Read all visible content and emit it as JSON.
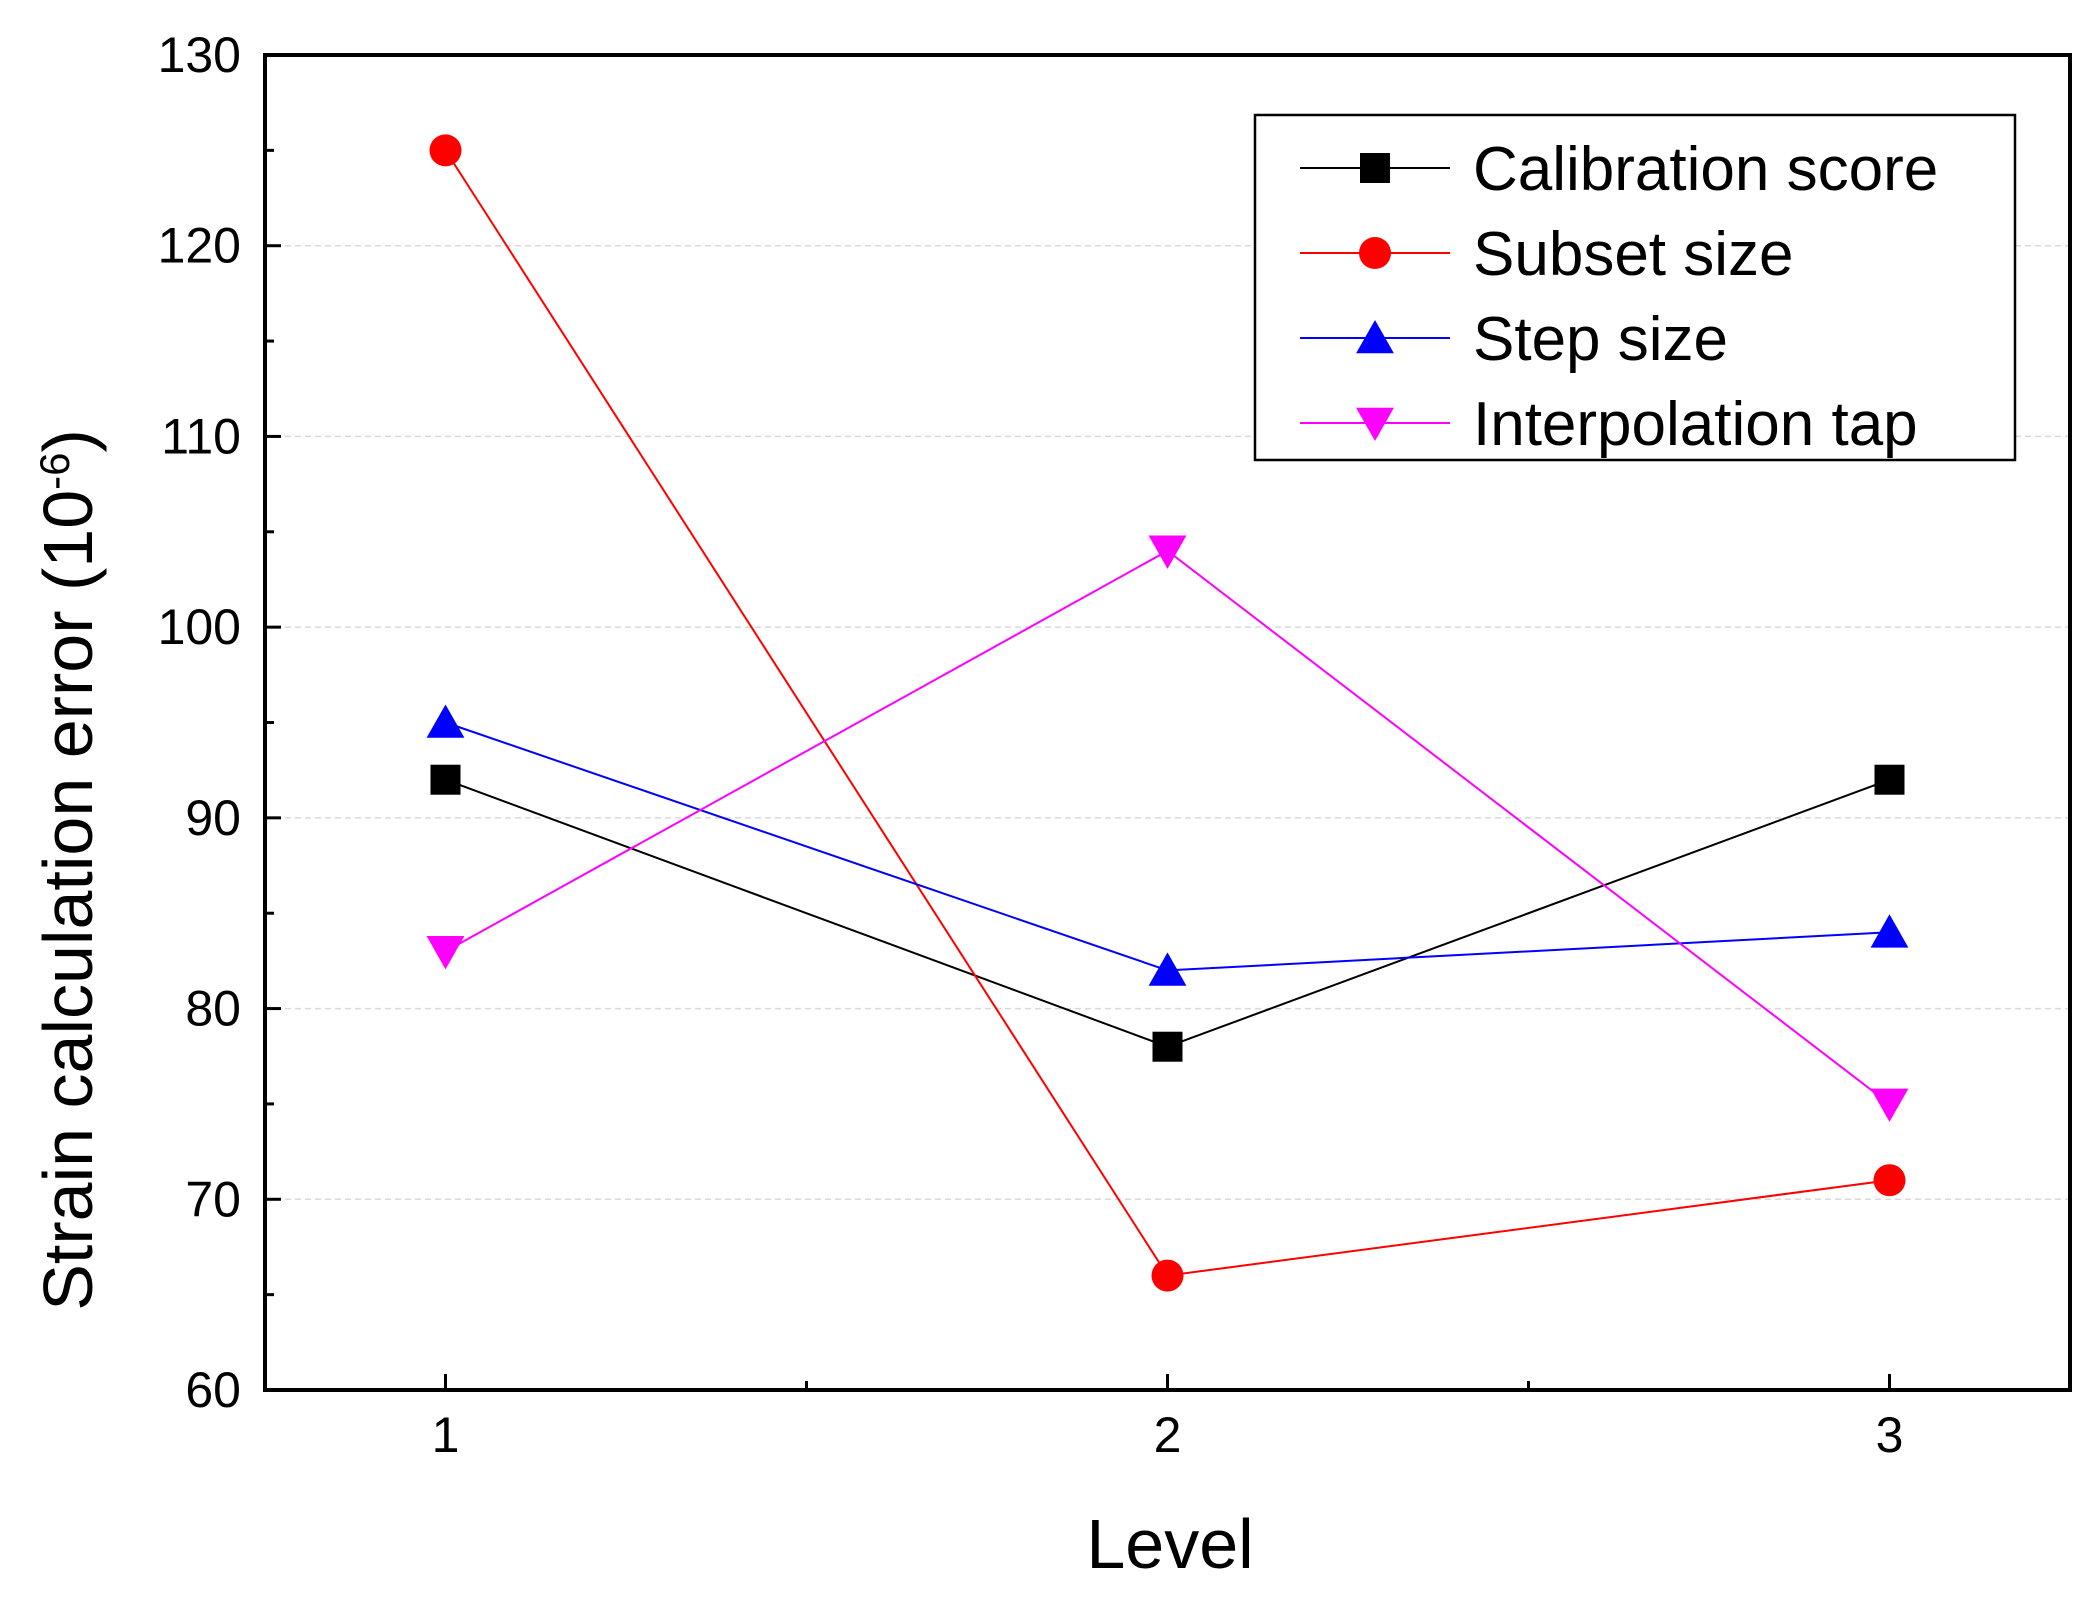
{
  "chart_data": {
    "type": "line",
    "title": "",
    "xlabel": "Level",
    "ylabel_main": "Strain calculation error (10",
    "ylabel_sup": "-6",
    "ylabel_close": ")",
    "categories": [
      "1",
      "2",
      "3"
    ],
    "x": [
      1,
      2,
      3
    ],
    "xlim": [
      0.75,
      3.25
    ],
    "ylim": [
      60,
      130
    ],
    "yticks": [
      60,
      70,
      80,
      90,
      100,
      110,
      120,
      130
    ],
    "y_minor_step": 5,
    "grid": true,
    "legend_position": "top-right",
    "series": [
      {
        "name": "Calibration score",
        "values": [
          92,
          78,
          92
        ],
        "color": "#000000",
        "marker": "square"
      },
      {
        "name": "Subset size",
        "values": [
          125,
          66,
          71
        ],
        "color": "#ff0000",
        "marker": "circle"
      },
      {
        "name": "Step size",
        "values": [
          95,
          82,
          84
        ],
        "color": "#0000ff",
        "marker": "triangle-up"
      },
      {
        "name": "Interpolation tap",
        "values": [
          83,
          104,
          75
        ],
        "color": "#ff00ff",
        "marker": "triangle-down"
      }
    ]
  }
}
